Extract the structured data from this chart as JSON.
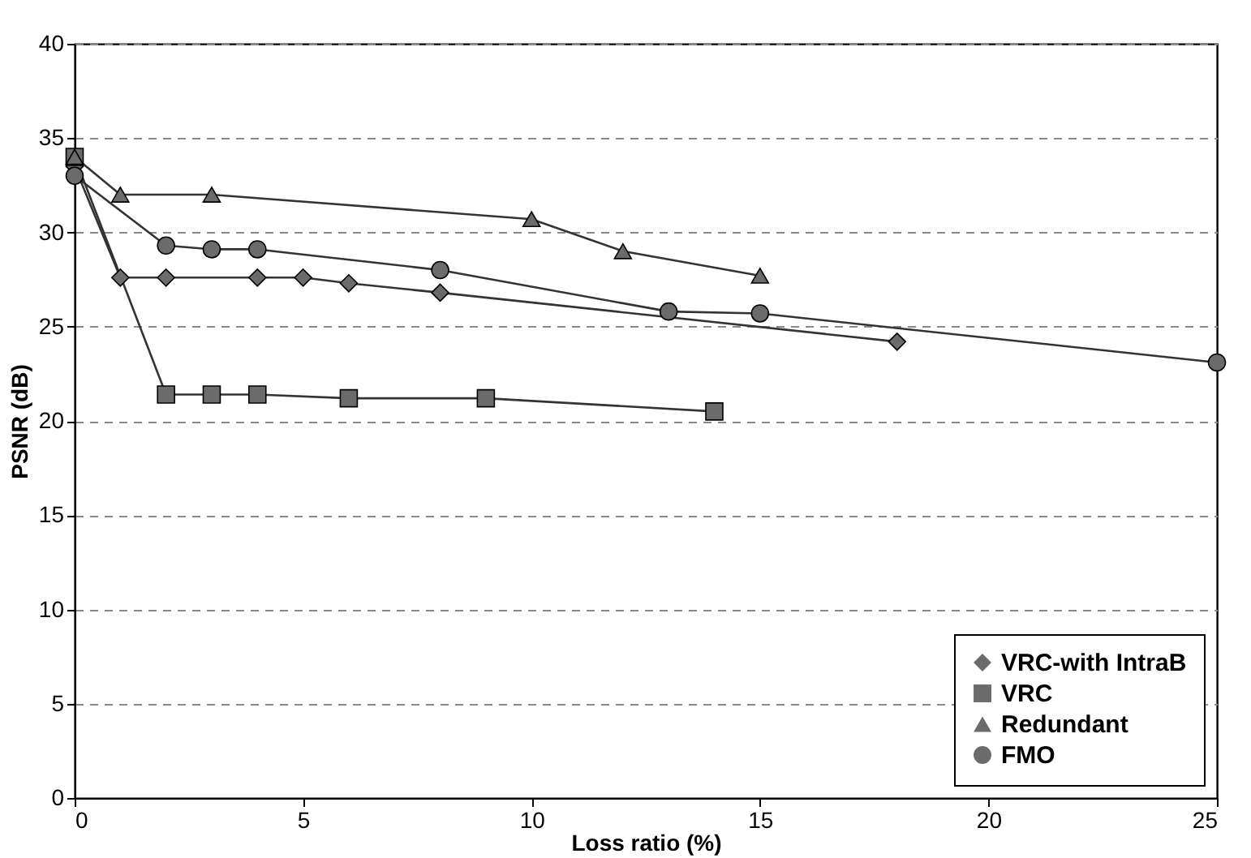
{
  "chart_data": {
    "type": "line",
    "xlabel": "Loss ratio (%)",
    "ylabel": "PSNR (dB)",
    "xlim": [
      0,
      25
    ],
    "xticks": [
      0,
      5,
      10,
      15,
      20,
      25
    ],
    "ylim": [
      0,
      40
    ],
    "yticks": [
      0,
      5,
      10,
      15,
      20,
      25,
      30,
      35,
      40
    ],
    "grid": "y",
    "legend": "bottom right",
    "series": [
      {
        "name": "VRC-with IntraB",
        "color": "#6b6b6b",
        "marker": "diamond",
        "x": [
          0,
          1,
          2,
          4,
          5,
          6,
          8,
          18
        ],
        "values": [
          33.5,
          27.6,
          27.6,
          27.6,
          27.6,
          27.3,
          26.8,
          24.2
        ]
      },
      {
        "name": "VRC",
        "color": "#6b6b6b",
        "marker": "square",
        "x": [
          0,
          2,
          3,
          4,
          6,
          9,
          14
        ],
        "values": [
          34,
          21.4,
          21.4,
          21.4,
          21.2,
          21.2,
          20.5
        ]
      },
      {
        "name": "Redundant",
        "color": "#6b6b6b",
        "marker": "triangle",
        "x": [
          0,
          1,
          3,
          10,
          12,
          15
        ],
        "values": [
          34,
          32,
          32,
          30.7,
          29,
          27.7
        ]
      },
      {
        "name": "FMO",
        "color": "#6b6b6b",
        "marker": "circle",
        "x": [
          0,
          2,
          3,
          4,
          8,
          13,
          15,
          25
        ],
        "values": [
          33,
          29.3,
          29.1,
          29.1,
          28,
          25.8,
          25.7,
          23.1
        ]
      }
    ]
  }
}
